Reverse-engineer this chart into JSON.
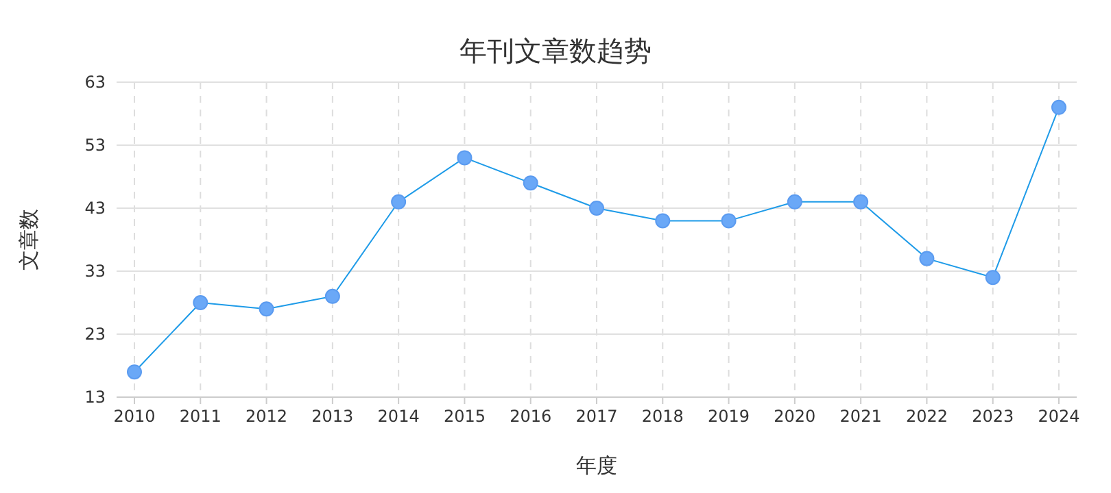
{
  "chart_data": {
    "type": "line",
    "title": "年刊文章数趋势",
    "xlabel": "年度",
    "ylabel": "文章数",
    "categories": [
      "2010",
      "2011",
      "2012",
      "2013",
      "2014",
      "2015",
      "2016",
      "2017",
      "2018",
      "2019",
      "2020",
      "2021",
      "2022",
      "2023",
      "2024"
    ],
    "series": [
      {
        "color": "#1e9be8",
        "values": [
          17,
          28,
          27,
          29,
          44,
          51,
          47,
          43,
          41,
          41,
          44,
          44,
          35,
          32,
          59
        ]
      }
    ],
    "ylim": [
      13,
      63
    ],
    "yticks": [
      13,
      23,
      33,
      43,
      53,
      63
    ],
    "grid": true,
    "marker": "circle",
    "line_style": "solid"
  }
}
